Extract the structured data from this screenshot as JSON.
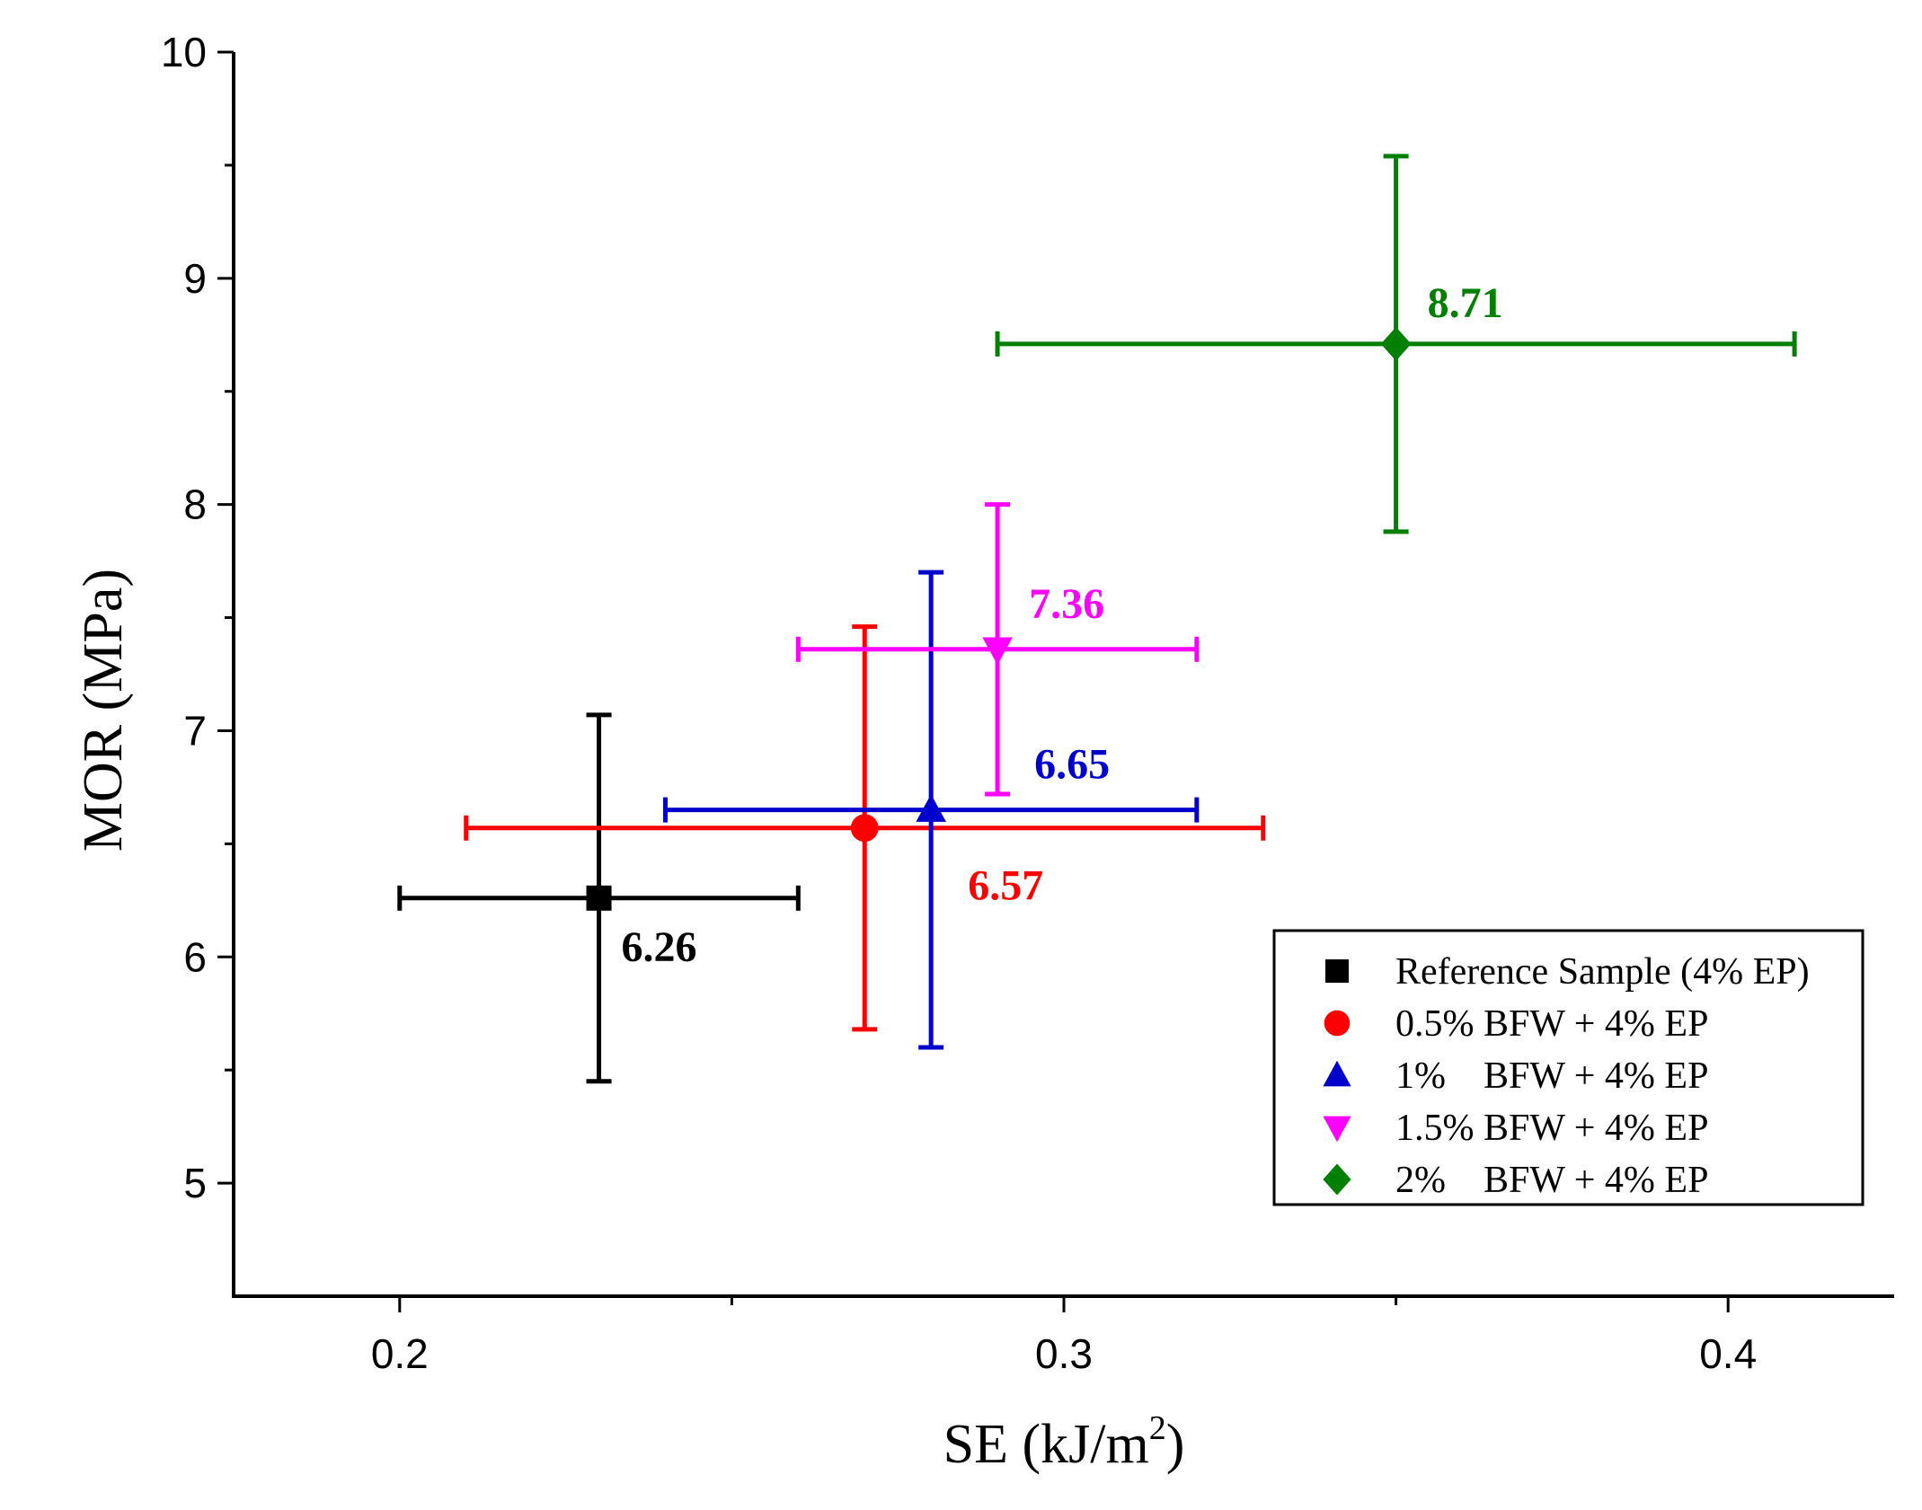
{
  "chart_data": {
    "type": "scatter",
    "title": "",
    "xlabel_main": "SE (kJ/m",
    "xlabel_sup": "2",
    "xlabel_close": ")",
    "ylabel": "MOR (MPa)",
    "xlim": [
      0.175,
      0.425
    ],
    "ylim": [
      4.5,
      10
    ],
    "x_ticks": [
      0.2,
      0.25,
      0.3,
      0.35,
      0.4
    ],
    "x_tick_labels": [
      "0.2",
      "",
      "0.3",
      "",
      "0.4"
    ],
    "y_ticks": [
      5,
      5.5,
      6,
      6.5,
      7,
      7.5,
      8,
      8.5,
      9,
      9.5,
      10
    ],
    "y_tick_labels": [
      "5",
      "",
      "6",
      "",
      "7",
      "",
      "8",
      "",
      "9",
      "",
      "10"
    ],
    "legend_position": "bottom-right",
    "series": [
      {
        "name": "Reference Sample (4% EP)",
        "legend_name": "Reference Sample (4% EP)",
        "marker": "square",
        "color": "#000000",
        "x": 0.23,
        "y": 6.26,
        "x_err": [
          0.2,
          0.26
        ],
        "y_err": [
          5.45,
          7.07
        ],
        "label": "6.26"
      },
      {
        "name": "0.5% BFW + 4% EP",
        "legend_name": "0.5% BFW + 4% EP",
        "marker": "circle",
        "color": "#ff0000",
        "x": 0.27,
        "y": 6.57,
        "x_err": [
          0.21,
          0.33
        ],
        "y_err": [
          5.68,
          7.46
        ],
        "label": "6.57"
      },
      {
        "name": "1% BFW + 4% EP",
        "legend_name": "1%    BFW + 4% EP",
        "marker": "triangle-up",
        "color": "#0000cc",
        "x": 0.28,
        "y": 6.65,
        "x_err": [
          0.24,
          0.32
        ],
        "y_err": [
          5.6,
          7.7
        ],
        "label": "6.65"
      },
      {
        "name": "1.5% BFW + 4% EP",
        "legend_name": "1.5% BFW + 4% EP",
        "marker": "triangle-down",
        "color": "#ff00ff",
        "x": 0.29,
        "y": 7.36,
        "x_err": [
          0.26,
          0.32
        ],
        "y_err": [
          6.72,
          8.0
        ],
        "label": "7.36"
      },
      {
        "name": "2% BFW + 4% EP",
        "legend_name": "2%    BFW + 4% EP",
        "marker": "diamond",
        "color": "#007f00",
        "x": 0.35,
        "y": 8.71,
        "x_err": [
          0.29,
          0.41
        ],
        "y_err": [
          7.88,
          9.54
        ],
        "label": "8.71"
      }
    ]
  }
}
